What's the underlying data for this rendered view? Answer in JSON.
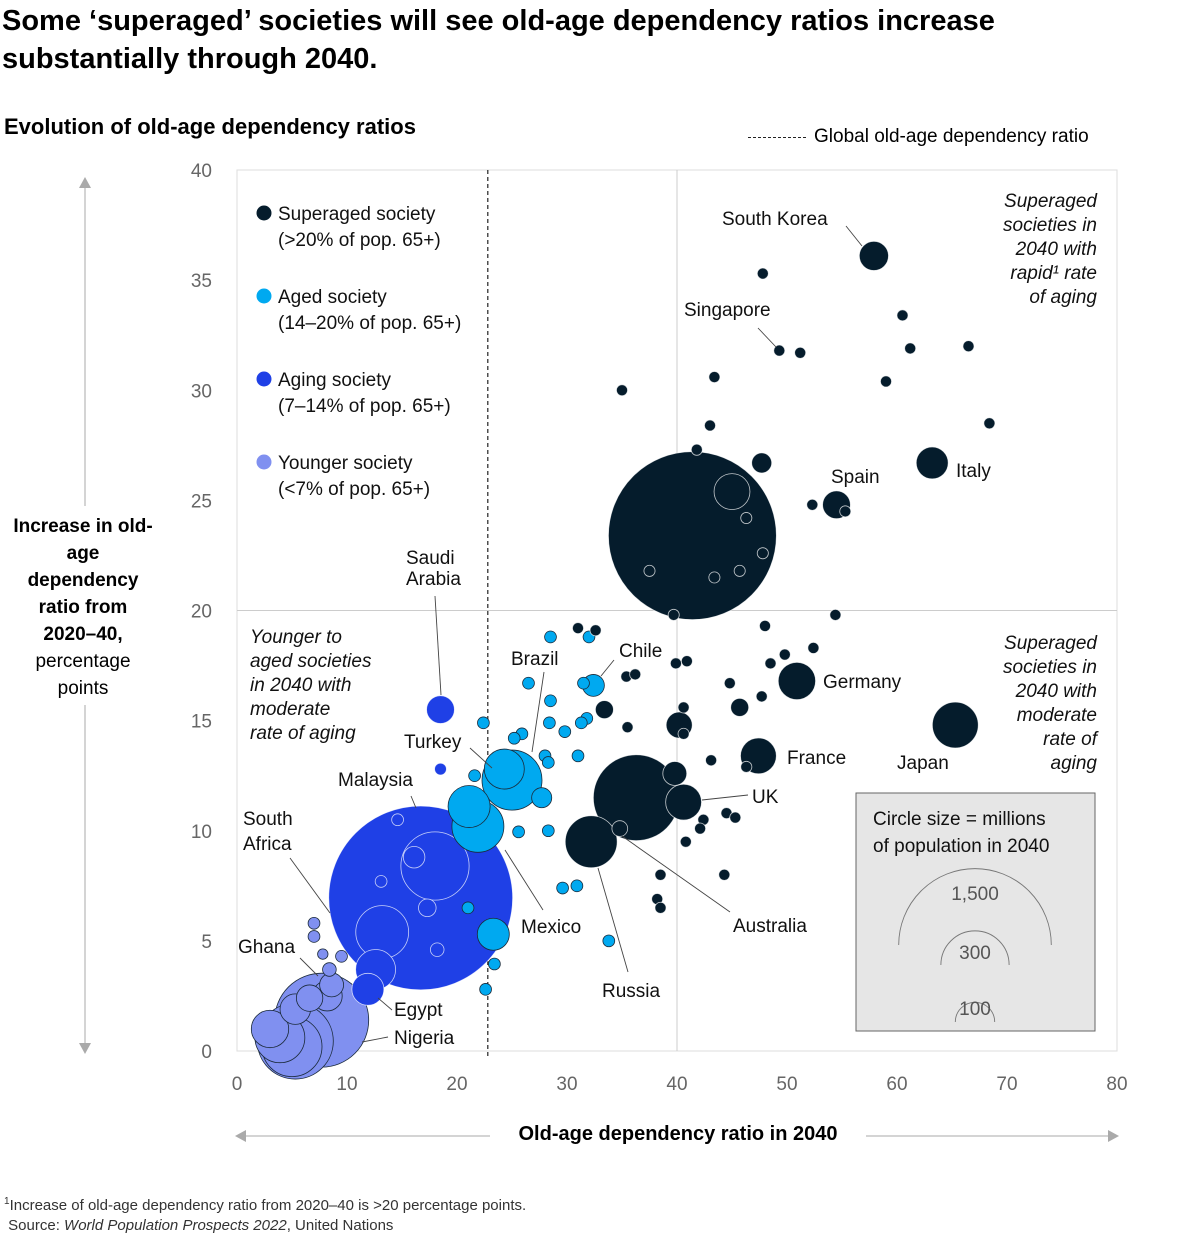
{
  "title": "Some ‘superaged’ societies will see old-age dependency ratios increase substantially through 2040.",
  "footnote": "Increase of old-age dependency ratio from 2020–40 is >20 percentage points.",
  "footnote_marker": "1",
  "source_prefix": "Source: ",
  "source_title": "World Population Prospects 2022",
  "source_suffix": ", United Nations",
  "chart_data": {
    "type": "scatter",
    "bubble": true,
    "title": "Evolution of old-age dependency ratios",
    "xlabel": "Old-age dependency ratio in 2040",
    "ylabel_bold": "Increase in old-age dependency ratio from 2020–40,",
    "ylabel_unit": "percentage points",
    "xlim": [
      0,
      80
    ],
    "ylim": [
      0,
      40
    ],
    "xticks": [
      "0",
      "10",
      "20",
      "30",
      "40",
      "50",
      "60",
      "70",
      "80"
    ],
    "yticks": [
      "0",
      "5",
      "10",
      "15",
      "20",
      "25",
      "30",
      "35",
      "40"
    ],
    "reference_lines": {
      "x": 40,
      "y": 20
    },
    "global_ratio": {
      "label": "Global old-age dependency ratio",
      "x": 22.8
    },
    "size_legend": {
      "title": "Circle size = millions of population in 2040",
      "values": [
        "1,500",
        "300",
        "100"
      ],
      "sizes": [
        1500,
        300,
        100
      ]
    },
    "groups": [
      {
        "id": "superaged",
        "name": "Superaged society",
        "desc": "(>20% of pop. 65+)",
        "color": "#051C2C"
      },
      {
        "id": "aged",
        "name": "Aged society",
        "desc": "(14–20% of pop. 65+)",
        "color": "#00A9F0"
      },
      {
        "id": "aging",
        "name": "Aging society",
        "desc": "(7–14% of pop. 65+)",
        "color": "#1F40E6"
      },
      {
        "id": "younger",
        "name": "Younger society",
        "desc": "(<7% of pop. 65+)",
        "color": "#8090F0"
      }
    ],
    "annotations": [
      {
        "id": "rapid",
        "lines": [
          "Superaged",
          "societies in",
          "2040 with",
          "rapid¹ rate",
          "of aging"
        ]
      },
      {
        "id": "moderate",
        "lines": [
          "Superaged",
          "societies in",
          "2040 with",
          "moderate",
          "rate of",
          "aging"
        ]
      },
      {
        "id": "younger",
        "lines": [
          "Younger to",
          "aged societies",
          "in 2040 with",
          "moderate",
          "rate of aging"
        ]
      }
    ],
    "points": [
      {
        "x": 41.4,
        "y": 23.4,
        "pop": 1818,
        "group": "superaged"
      },
      {
        "x": 16.7,
        "y": 6.95,
        "pop": 2180,
        "group": "aging"
      },
      {
        "x": 36.3,
        "y": 11.5,
        "pop": 476,
        "group": "superaged"
      },
      {
        "x": 7.7,
        "y": 1.4,
        "pop": 569,
        "group": "younger",
        "label": "Nigeria"
      },
      {
        "x": 5.3,
        "y": 0.45,
        "pop": 372,
        "group": "younger"
      },
      {
        "x": 5.0,
        "y": 0.2,
        "pop": 232,
        "group": "younger"
      },
      {
        "x": 3.9,
        "y": 0.6,
        "pop": 160,
        "group": "younger"
      },
      {
        "x": 3.0,
        "y": 1.0,
        "pop": 90,
        "group": "younger"
      },
      {
        "x": 5.3,
        "y": 1.9,
        "pop": 60,
        "group": "younger"
      },
      {
        "x": 6.6,
        "y": 2.4,
        "pop": 45,
        "group": "younger"
      },
      {
        "x": 8.2,
        "y": 2.5,
        "pop": 58,
        "group": "younger"
      },
      {
        "x": 8.6,
        "y": 3.0,
        "pop": 37,
        "group": "younger",
        "label": "Ghana"
      },
      {
        "x": 8.4,
        "y": 3.7,
        "pop": 12,
        "group": "younger"
      },
      {
        "x": 7.8,
        "y": 4.4,
        "pop": 7,
        "group": "younger"
      },
      {
        "x": 9.5,
        "y": 4.3,
        "pop": 9,
        "group": "younger"
      },
      {
        "x": 7.0,
        "y": 5.2,
        "pop": 9,
        "group": "younger"
      },
      {
        "x": 7.0,
        "y": 5.8,
        "pop": 9,
        "group": "younger"
      },
      {
        "x": 11.9,
        "y": 2.8,
        "pop": 66,
        "group": "aging",
        "label": "Egypt"
      },
      {
        "x": 12.6,
        "y": 3.7,
        "pop": 103,
        "group": "aging"
      },
      {
        "x": 13.2,
        "y": 5.4,
        "pop": 180,
        "group": "aging",
        "label": "South Africa"
      },
      {
        "x": 18.0,
        "y": 8.4,
        "pop": 300,
        "group": "aging"
      },
      {
        "x": 16.1,
        "y": 8.8,
        "pop": 30,
        "group": "aging"
      },
      {
        "x": 17.3,
        "y": 6.5,
        "pop": 20,
        "group": "aging"
      },
      {
        "x": 18.2,
        "y": 4.6,
        "pop": 12,
        "group": "aging"
      },
      {
        "x": 13.1,
        "y": 7.7,
        "pop": 9,
        "group": "aging"
      },
      {
        "x": 14.6,
        "y": 10.5,
        "pop": 9,
        "group": "aging",
        "label": "Malaysia"
      },
      {
        "x": 18.5,
        "y": 15.5,
        "pop": 50,
        "group": "aging",
        "label": "Saudi Arabia"
      },
      {
        "x": 18.5,
        "y": 12.8,
        "pop": 9,
        "group": "aging"
      },
      {
        "x": 25.0,
        "y": 12.3,
        "pop": 232,
        "group": "aged",
        "label": "Brazil"
      },
      {
        "x": 24.3,
        "y": 12.8,
        "pop": 103,
        "group": "aged",
        "label": "Turkey"
      },
      {
        "x": 21.9,
        "y": 10.2,
        "pop": 174,
        "group": "aged",
        "label": "Mexico"
      },
      {
        "x": 21.1,
        "y": 11.1,
        "pop": 114,
        "group": "aged"
      },
      {
        "x": 23.3,
        "y": 5.3,
        "pop": 66,
        "group": "aged"
      },
      {
        "x": 27.7,
        "y": 11.5,
        "pop": 26,
        "group": "aged"
      },
      {
        "x": 32.4,
        "y": 16.6,
        "pop": 31,
        "group": "aged",
        "label": "Chile"
      },
      {
        "x": 31.5,
        "y": 16.7,
        "pop": 9,
        "group": "aged"
      },
      {
        "x": 28.5,
        "y": 18.8,
        "pop": 9,
        "group": "aged"
      },
      {
        "x": 32.0,
        "y": 18.8,
        "pop": 9,
        "group": "aged"
      },
      {
        "x": 26.5,
        "y": 16.7,
        "pop": 9,
        "group": "aged"
      },
      {
        "x": 28.5,
        "y": 15.9,
        "pop": 9,
        "group": "aged"
      },
      {
        "x": 22.4,
        "y": 14.9,
        "pop": 9,
        "group": "aged"
      },
      {
        "x": 28.4,
        "y": 14.9,
        "pop": 9,
        "group": "aged"
      },
      {
        "x": 31.8,
        "y": 15.1,
        "pop": 9,
        "group": "aged"
      },
      {
        "x": 31.3,
        "y": 14.9,
        "pop": 9,
        "group": "aged"
      },
      {
        "x": 25.9,
        "y": 14.4,
        "pop": 9,
        "group": "aged"
      },
      {
        "x": 25.2,
        "y": 14.2,
        "pop": 9,
        "group": "aged"
      },
      {
        "x": 29.8,
        "y": 14.5,
        "pop": 9,
        "group": "aged"
      },
      {
        "x": 28.0,
        "y": 13.4,
        "pop": 9,
        "group": "aged"
      },
      {
        "x": 28.3,
        "y": 13.1,
        "pop": 9,
        "group": "aged"
      },
      {
        "x": 31.0,
        "y": 13.4,
        "pop": 9,
        "group": "aged"
      },
      {
        "x": 21.6,
        "y": 12.5,
        "pop": 9,
        "group": "aged"
      },
      {
        "x": 25.6,
        "y": 9.95,
        "pop": 9,
        "group": "aged"
      },
      {
        "x": 28.3,
        "y": 10.0,
        "pop": 9,
        "group": "aged"
      },
      {
        "x": 21.0,
        "y": 6.5,
        "pop": 9,
        "group": "aged"
      },
      {
        "x": 23.4,
        "y": 3.95,
        "pop": 9,
        "group": "aged"
      },
      {
        "x": 22.6,
        "y": 2.8,
        "pop": 9,
        "group": "aged"
      },
      {
        "x": 29.6,
        "y": 7.4,
        "pop": 9,
        "group": "aged"
      },
      {
        "x": 30.9,
        "y": 7.5,
        "pop": 9,
        "group": "aged"
      },
      {
        "x": 33.8,
        "y": 5.0,
        "pop": 9,
        "group": "aged"
      },
      {
        "x": 57.9,
        "y": 36.1,
        "pop": 55,
        "group": "superaged",
        "label": "South Korea"
      },
      {
        "x": 47.8,
        "y": 35.3,
        "pop": 8,
        "group": "superaged"
      },
      {
        "x": 49.3,
        "y": 31.8,
        "pop": 8,
        "group": "superaged",
        "label": "Singapore"
      },
      {
        "x": 51.2,
        "y": 31.7,
        "pop": 8,
        "group": "superaged"
      },
      {
        "x": 60.5,
        "y": 33.4,
        "pop": 8,
        "group": "superaged"
      },
      {
        "x": 61.2,
        "y": 31.9,
        "pop": 8,
        "group": "superaged"
      },
      {
        "x": 66.5,
        "y": 32.0,
        "pop": 8,
        "group": "superaged"
      },
      {
        "x": 59.0,
        "y": 30.4,
        "pop": 8,
        "group": "superaged"
      },
      {
        "x": 68.4,
        "y": 28.5,
        "pop": 8,
        "group": "superaged"
      },
      {
        "x": 35.0,
        "y": 30.0,
        "pop": 8,
        "group": "superaged"
      },
      {
        "x": 43.4,
        "y": 30.6,
        "pop": 8,
        "group": "superaged"
      },
      {
        "x": 43.0,
        "y": 28.4,
        "pop": 8,
        "group": "superaged"
      },
      {
        "x": 41.8,
        "y": 27.3,
        "pop": 8,
        "group": "superaged"
      },
      {
        "x": 47.7,
        "y": 26.7,
        "pop": 26,
        "group": "superaged"
      },
      {
        "x": 45.0,
        "y": 25.4,
        "pop": 83,
        "group": "superaged"
      },
      {
        "x": 46.3,
        "y": 24.2,
        "pop": 8,
        "group": "superaged"
      },
      {
        "x": 47.8,
        "y": 22.6,
        "pop": 8,
        "group": "superaged"
      },
      {
        "x": 45.7,
        "y": 21.8,
        "pop": 8,
        "group": "superaged"
      },
      {
        "x": 43.4,
        "y": 21.5,
        "pop": 8,
        "group": "superaged"
      },
      {
        "x": 37.5,
        "y": 21.8,
        "pop": 8,
        "group": "superaged"
      },
      {
        "x": 39.7,
        "y": 19.8,
        "pop": 8,
        "group": "superaged"
      },
      {
        "x": 63.2,
        "y": 26.7,
        "pop": 66,
        "group": "superaged",
        "label": "Italy"
      },
      {
        "x": 54.5,
        "y": 24.8,
        "pop": 50,
        "group": "superaged",
        "label": "Spain"
      },
      {
        "x": 52.3,
        "y": 24.8,
        "pop": 8,
        "group": "superaged"
      },
      {
        "x": 55.3,
        "y": 24.5,
        "pop": 8,
        "group": "superaged"
      },
      {
        "x": 54.4,
        "y": 19.8,
        "pop": 8,
        "group": "superaged"
      },
      {
        "x": 48.0,
        "y": 19.3,
        "pop": 8,
        "group": "superaged"
      },
      {
        "x": 31.0,
        "y": 19.2,
        "pop": 8,
        "group": "superaged"
      },
      {
        "x": 32.6,
        "y": 19.1,
        "pop": 8,
        "group": "superaged"
      },
      {
        "x": 52.4,
        "y": 18.3,
        "pop": 8,
        "group": "superaged"
      },
      {
        "x": 49.8,
        "y": 18.0,
        "pop": 8,
        "group": "superaged"
      },
      {
        "x": 48.5,
        "y": 17.6,
        "pop": 8,
        "group": "superaged"
      },
      {
        "x": 50.9,
        "y": 16.8,
        "pop": 90,
        "group": "superaged",
        "label": "Germany"
      },
      {
        "x": 44.8,
        "y": 16.7,
        "pop": 8,
        "group": "superaged"
      },
      {
        "x": 47.7,
        "y": 16.1,
        "pop": 8,
        "group": "superaged"
      },
      {
        "x": 45.7,
        "y": 15.6,
        "pop": 21,
        "group": "superaged"
      },
      {
        "x": 39.9,
        "y": 17.6,
        "pop": 8,
        "group": "superaged"
      },
      {
        "x": 40.9,
        "y": 17.7,
        "pop": 8,
        "group": "superaged"
      },
      {
        "x": 35.4,
        "y": 17.0,
        "pop": 8,
        "group": "superaged"
      },
      {
        "x": 36.2,
        "y": 17.1,
        "pop": 8,
        "group": "superaged"
      },
      {
        "x": 33.4,
        "y": 15.5,
        "pop": 21,
        "group": "superaged"
      },
      {
        "x": 35.5,
        "y": 14.7,
        "pop": 8,
        "group": "superaged"
      },
      {
        "x": 40.6,
        "y": 15.6,
        "pop": 8,
        "group": "superaged"
      },
      {
        "x": 40.2,
        "y": 14.8,
        "pop": 44,
        "group": "superaged"
      },
      {
        "x": 40.6,
        "y": 14.4,
        "pop": 8,
        "group": "superaged"
      },
      {
        "x": 65.3,
        "y": 14.8,
        "pop": 136,
        "group": "superaged",
        "label": "Japan"
      },
      {
        "x": 47.4,
        "y": 13.4,
        "pop": 83,
        "group": "superaged",
        "label": "France"
      },
      {
        "x": 46.3,
        "y": 12.9,
        "pop": 8,
        "group": "superaged"
      },
      {
        "x": 43.1,
        "y": 13.2,
        "pop": 8,
        "group": "superaged"
      },
      {
        "x": 39.8,
        "y": 12.6,
        "pop": 37,
        "group": "superaged"
      },
      {
        "x": 40.6,
        "y": 11.3,
        "pop": 83,
        "group": "superaged",
        "label": "UK"
      },
      {
        "x": 32.2,
        "y": 9.5,
        "pop": 174,
        "group": "superaged",
        "label": "Russia"
      },
      {
        "x": 34.8,
        "y": 10.1,
        "pop": 16,
        "group": "superaged",
        "label": "Australia"
      },
      {
        "x": 44.5,
        "y": 10.8,
        "pop": 8,
        "group": "superaged"
      },
      {
        "x": 45.3,
        "y": 10.6,
        "pop": 8,
        "group": "superaged"
      },
      {
        "x": 42.4,
        "y": 10.5,
        "pop": 8,
        "group": "superaged"
      },
      {
        "x": 42.1,
        "y": 10.1,
        "pop": 8,
        "group": "superaged"
      },
      {
        "x": 40.8,
        "y": 9.5,
        "pop": 8,
        "group": "superaged"
      },
      {
        "x": 38.5,
        "y": 8.0,
        "pop": 8,
        "group": "superaged"
      },
      {
        "x": 38.2,
        "y": 6.9,
        "pop": 8,
        "group": "superaged"
      },
      {
        "x": 38.5,
        "y": 6.5,
        "pop": 8,
        "group": "superaged"
      },
      {
        "x": 44.3,
        "y": 8.0,
        "pop": 8,
        "group": "superaged"
      }
    ]
  }
}
